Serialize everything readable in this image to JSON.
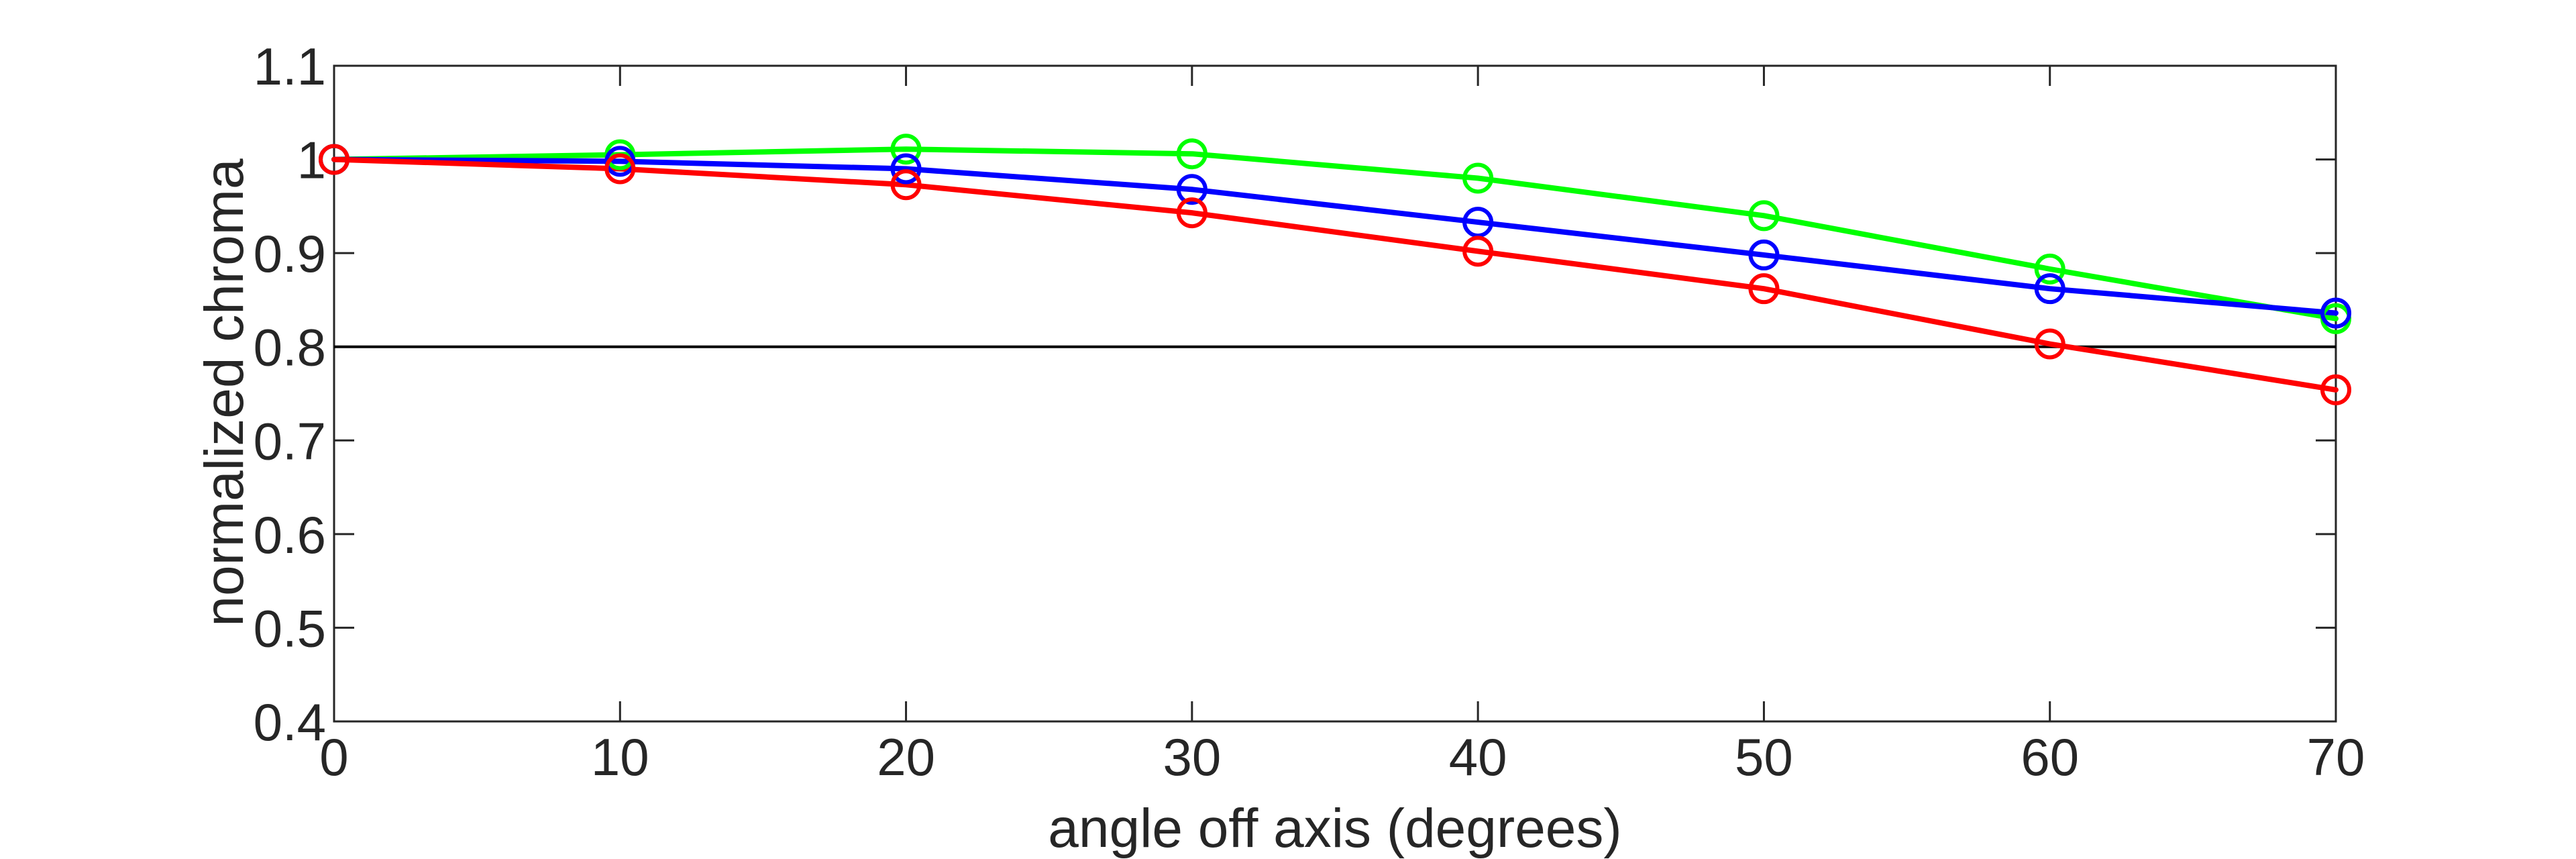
{
  "chart_data": {
    "type": "line",
    "title": "",
    "xlabel": "angle off axis (degrees)",
    "ylabel": "normalized chroma",
    "xlim": [
      0,
      70
    ],
    "ylim": [
      0.4,
      1.1
    ],
    "xticks": [
      0,
      10,
      20,
      30,
      40,
      50,
      60,
      70
    ],
    "xtick_labels": [
      "0",
      "10",
      "20",
      "30",
      "40",
      "50",
      "60",
      "70"
    ],
    "yticks": [
      0.4,
      0.5,
      0.6,
      0.7,
      0.8,
      0.9,
      1.0,
      1.1
    ],
    "ytick_labels": [
      "0.4",
      "0.5",
      "0.6",
      "0.7",
      "0.8",
      "0.9",
      "1",
      "1.1"
    ],
    "grid": false,
    "legend": false,
    "marker": "circle",
    "reference_line": {
      "y": 0.8,
      "color": "#000000"
    },
    "x": [
      0,
      10,
      20,
      30,
      40,
      50,
      60,
      70
    ],
    "series": [
      {
        "color": "#00ff00",
        "values": [
          1.0,
          1.005,
          1.011,
          1.006,
          0.98,
          0.94,
          0.883,
          0.83
        ]
      },
      {
        "color": "#0000ff",
        "values": [
          1.0,
          0.998,
          0.99,
          0.968,
          0.933,
          0.898,
          0.862,
          0.836
        ]
      },
      {
        "color": "#ff0000",
        "values": [
          1.0,
          0.99,
          0.973,
          0.943,
          0.902,
          0.862,
          0.803,
          0.754
        ]
      }
    ]
  }
}
